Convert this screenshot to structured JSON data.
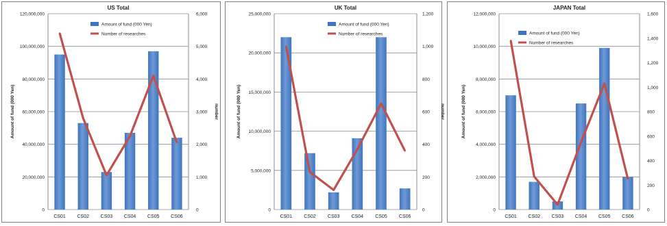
{
  "colors": {
    "bar": "#3f74be",
    "bar_light": "#6f9ad6",
    "line": "#c0504d",
    "grid": "#8c8c8c",
    "frame": "#7f7f7f",
    "text": "#222222"
  },
  "chart_data": [
    {
      "type": "bar",
      "title": "US Total",
      "ylabel": "Amount of fund (000 Yen)",
      "y2label": "number",
      "categories": [
        "CS01",
        "CS02",
        "CS03",
        "CS04",
        "CS05",
        "CS06"
      ],
      "ylim": [
        0,
        120000000
      ],
      "y2lim": [
        0,
        6000
      ],
      "yticks": [
        "0",
        "20,000,000",
        "40,000,000",
        "60,000,000",
        "80,000,000",
        "100,000,000",
        "120,000,000"
      ],
      "y2ticks": [
        "0",
        "1,000",
        "2,000",
        "3,000",
        "4,000",
        "5,000",
        "6,000"
      ],
      "grid": true,
      "legend": "top-center",
      "series": [
        {
          "name": "Amount of fund (000 Yen)",
          "kind": "bar",
          "axis": "left",
          "values": [
            95000000,
            53000000,
            23000000,
            47000000,
            97000000,
            44000000
          ]
        },
        {
          "name": "Number of researches",
          "kind": "line",
          "axis": "right",
          "values": [
            5400,
            2800,
            1050,
            2250,
            4100,
            2050
          ]
        }
      ]
    },
    {
      "type": "bar",
      "title": "UK Total",
      "ylabel": "Amount of fund (000 Yen)",
      "y2label": "number",
      "categories": [
        "CS01",
        "CS02",
        "CS03",
        "CS04",
        "CS05",
        "CS06"
      ],
      "ylim": [
        0,
        25000000
      ],
      "y2lim": [
        0,
        1200
      ],
      "yticks": [
        "0",
        "5,000,000",
        "10,000,000",
        "15,000,000",
        "20,000,000",
        "25,000,000"
      ],
      "y2ticks": [
        "0",
        "200",
        "400",
        "600",
        "800",
        "1,000",
        "1,200"
      ],
      "grid": true,
      "legend": "top-center",
      "series": [
        {
          "name": "Amount of fund (000 Yen)",
          "kind": "bar",
          "axis": "left",
          "values": [
            22000000,
            7200000,
            2200000,
            9100000,
            22000000,
            2700000
          ]
        },
        {
          "name": "Number of researches",
          "kind": "line",
          "axis": "right",
          "values": [
            1000,
            230,
            120,
            370,
            650,
            360
          ]
        }
      ]
    },
    {
      "type": "bar",
      "title": "JAPAN Total",
      "ylabel": "Amount of fund (000 Yen)",
      "y2label": "",
      "categories": [
        "CS01",
        "CS02",
        "CS03",
        "CS04",
        "CS05",
        "CS06"
      ],
      "ylim": [
        0,
        12000000
      ],
      "y2lim": [
        0,
        1600
      ],
      "yticks": [
        "0",
        "2,000,000",
        "4,000,000",
        "6,000,000",
        "8,000,000",
        "10,000,000",
        "12,000,000"
      ],
      "y2ticks": [
        "0",
        "200",
        "400",
        "600",
        "800",
        "1,000",
        "1,200",
        "1,400",
        "1,600"
      ],
      "grid": true,
      "legend": "top-left",
      "series": [
        {
          "name": "Amount of fund (000 Yen)",
          "kind": "bar",
          "axis": "left",
          "values": [
            7000000,
            1700000,
            500000,
            6500000,
            9900000,
            2000000
          ]
        },
        {
          "name": "Number of researches",
          "kind": "line",
          "axis": "right",
          "values": [
            1380,
            270,
            40,
            550,
            1030,
            250
          ]
        }
      ]
    }
  ]
}
